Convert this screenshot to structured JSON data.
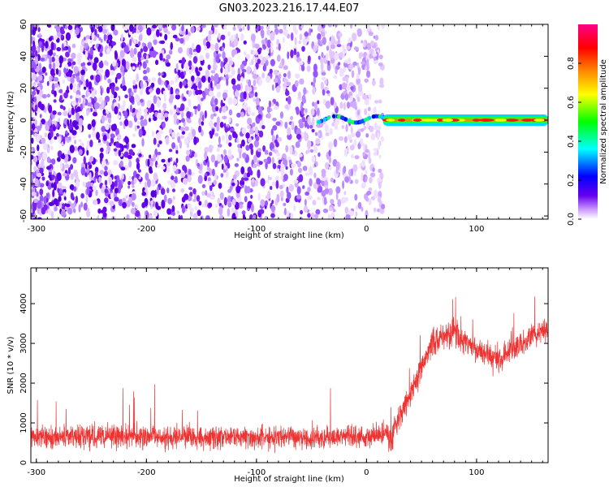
{
  "title": "GN03.2023.216.17.44.E07",
  "chart_data": [
    {
      "type": "heatmap",
      "xlabel": "Height of straight line (km)",
      "ylabel": "Frequency (Hz)",
      "xlim": [
        -305,
        165
      ],
      "ylim": [
        -62,
        60
      ],
      "xticks": [
        -300,
        -200,
        -100,
        0,
        100
      ],
      "yticks": [
        -60,
        -40,
        -20,
        0,
        20,
        40,
        60
      ],
      "colorbar": {
        "label": "Normalized spectral amplitude",
        "range": [
          0,
          1
        ],
        "ticks": [
          "0.0",
          "0.2",
          "0.4",
          "0.6",
          "0.8"
        ],
        "colormap": [
          "#ffffff",
          "#cc99ff",
          "#6600ee",
          "#0000ff",
          "#00ffff",
          "#00ff00",
          "#ffff00",
          "#ff8800",
          "#ff0000",
          "#ff0088"
        ]
      },
      "regions": [
        {
          "name": "broadband noise",
          "x_range": [
            -305,
            15
          ],
          "freq_range": [
            -62,
            60
          ],
          "amplitude": 0.05
        },
        {
          "name": "narrowband line",
          "x_range": [
            15,
            165
          ],
          "freq_center": 0,
          "amplitude": 0.9
        }
      ]
    },
    {
      "type": "line",
      "xlabel": "Height of straight line (km)",
      "ylabel": "SNR (10 * v/v)",
      "xlim": [
        -305,
        165
      ],
      "ylim": [
        0,
        4900
      ],
      "xticks": [
        -300,
        -200,
        -100,
        0,
        100
      ],
      "yticks": [
        0,
        1000,
        2000,
        3000,
        4000
      ],
      "series_color": "#ee3333",
      "baseline": {
        "x": [
          -305,
          20
        ],
        "mean": 650,
        "spread": 350
      },
      "rise": {
        "x": [
          20,
          60
        ],
        "from": 500,
        "to": 3000
      },
      "trend": [
        {
          "x": 60,
          "y": 3100
        },
        {
          "x": 80,
          "y": 3300
        },
        {
          "x": 100,
          "y": 2800
        },
        {
          "x": 120,
          "y": 2600
        },
        {
          "x": 140,
          "y": 3000
        },
        {
          "x": 165,
          "y": 3400
        }
      ]
    }
  ]
}
